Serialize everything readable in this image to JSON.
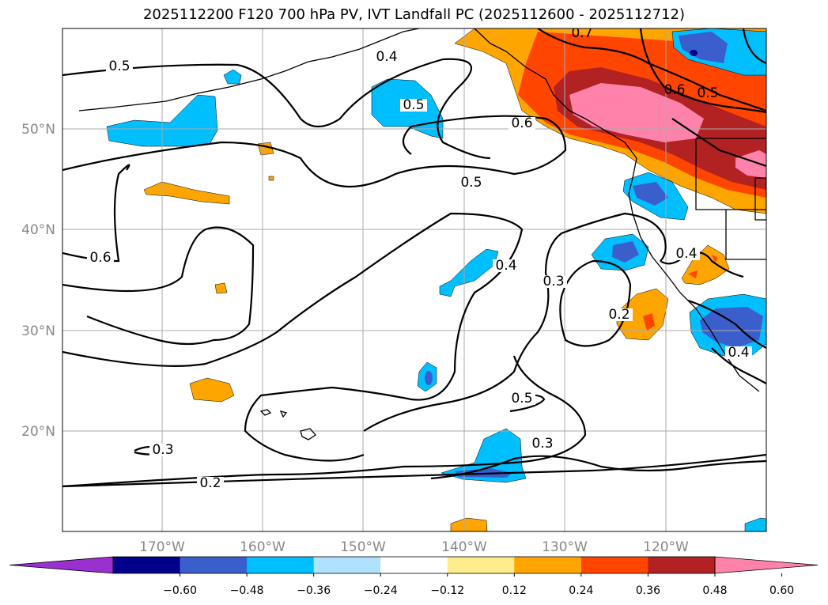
{
  "title": "2025112200 F120 700 hPa PV, IVT Landfall PC (2025112600 - 2025112712)",
  "map": {
    "lon_ticks": [
      "170°W",
      "160°W",
      "150°W",
      "140°W",
      "130°W",
      "120°W"
    ],
    "lat_ticks": [
      "50°N",
      "40°N",
      "30°N",
      "20°N"
    ],
    "gridlines": true
  },
  "contour_labels": [
    "0.5",
    "0.4",
    "0.5",
    "0.6",
    "0.7",
    "0.5",
    "0.6",
    "0.5",
    "0.6",
    "0.4",
    "0.3",
    "0.2",
    "0.4",
    "0.4",
    "0.5",
    "0.3",
    "0.3",
    "0.2"
  ],
  "colorbar": {
    "colors": [
      "#9b30d0",
      "#00008b",
      "#3a5fcd",
      "#00bfff",
      "#b0e2ff",
      "#ffffff",
      "#ffec8b",
      "#ffa500",
      "#ff4500",
      "#b22222",
      "#ff82ab"
    ],
    "tick_labels": [
      "−0.60",
      "−0.48",
      "−0.36",
      "−0.24",
      "−0.12",
      "0.12",
      "0.24",
      "0.36",
      "0.48",
      "0.60"
    ]
  }
}
